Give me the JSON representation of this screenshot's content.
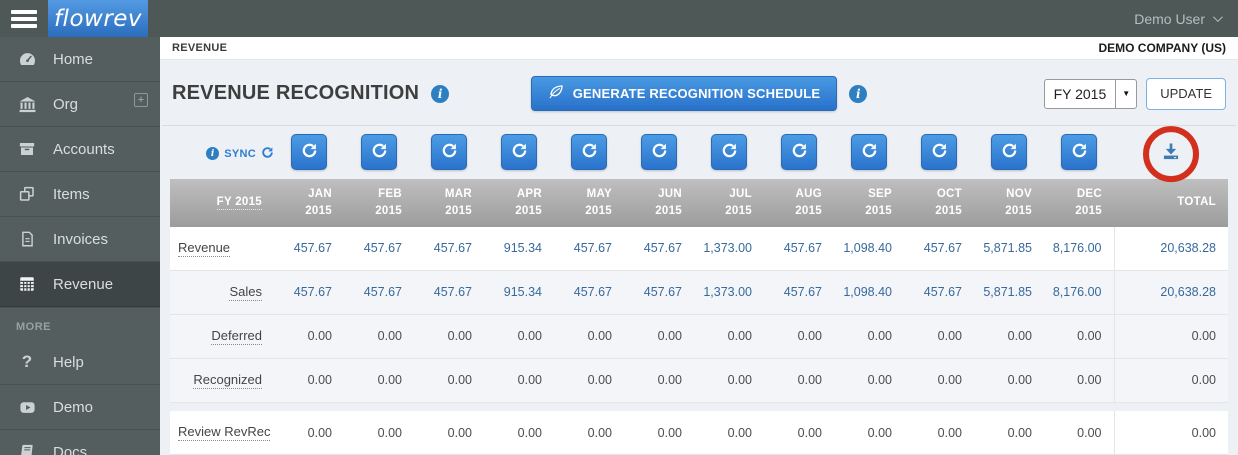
{
  "topbar": {
    "brand": "flowrev",
    "user": "Demo User"
  },
  "sidebar": {
    "items": [
      {
        "label": "Home",
        "icon": "gauge-icon",
        "active": false,
        "has_plus": false
      },
      {
        "label": "Org",
        "icon": "bank-icon",
        "active": false,
        "has_plus": true
      },
      {
        "label": "Accounts",
        "icon": "archive-icon",
        "active": false,
        "has_plus": false
      },
      {
        "label": "Items",
        "icon": "copy-icon",
        "active": false,
        "has_plus": false
      },
      {
        "label": "Invoices",
        "icon": "document-icon",
        "active": false,
        "has_plus": false
      },
      {
        "label": "Revenue",
        "icon": "calculator-icon",
        "active": true,
        "has_plus": false
      }
    ],
    "more_label": "MORE",
    "more_items": [
      {
        "label": "Help",
        "icon": "question-icon",
        "active": false,
        "has_plus": false
      },
      {
        "label": "Demo",
        "icon": "play-icon",
        "active": false,
        "has_plus": false
      },
      {
        "label": "Docs",
        "icon": "book-icon",
        "active": false,
        "has_plus": false
      }
    ]
  },
  "page": {
    "breadcrumb": "REVENUE",
    "company": "DEMO COMPANY (US)"
  },
  "toolbar": {
    "title": "REVENUE RECOGNITION",
    "generate_label": "GENERATE RECOGNITION SCHEDULE",
    "year_selected": "FY 2015",
    "update_label": "UPDATE"
  },
  "sync": {
    "label": "SYNC"
  },
  "colors": {
    "accent_blue": "#2d7ed3",
    "value_blue": "#38699c",
    "annotation_red": "#d32f1e",
    "sidebar_gray": "#545e5f"
  },
  "table": {
    "fiscal_year_header": "FY 2015",
    "year": "2015",
    "months": [
      "JAN",
      "FEB",
      "MAR",
      "APR",
      "MAY",
      "JUN",
      "JUL",
      "AUG",
      "SEP",
      "OCT",
      "NOV",
      "DEC"
    ],
    "total_header": "TOTAL",
    "rows": [
      {
        "label": "Revenue",
        "indent": false,
        "blue": true,
        "shade": false,
        "gap_before": false,
        "values": [
          "457.67",
          "457.67",
          "457.67",
          "915.34",
          "457.67",
          "457.67",
          "1,373.00",
          "457.67",
          "1,098.40",
          "457.67",
          "5,871.85",
          "8,176.00"
        ],
        "total": "20,638.28"
      },
      {
        "label": "Sales",
        "indent": true,
        "blue": true,
        "shade": true,
        "gap_before": false,
        "values": [
          "457.67",
          "457.67",
          "457.67",
          "915.34",
          "457.67",
          "457.67",
          "1,373.00",
          "457.67",
          "1,098.40",
          "457.67",
          "5,871.85",
          "8,176.00"
        ],
        "total": "20,638.28"
      },
      {
        "label": "Deferred",
        "indent": true,
        "blue": false,
        "shade": true,
        "gap_before": false,
        "values": [
          "0.00",
          "0.00",
          "0.00",
          "0.00",
          "0.00",
          "0.00",
          "0.00",
          "0.00",
          "0.00",
          "0.00",
          "0.00",
          "0.00"
        ],
        "total": "0.00"
      },
      {
        "label": "Recognized",
        "indent": true,
        "blue": false,
        "shade": true,
        "gap_before": false,
        "values": [
          "0.00",
          "0.00",
          "0.00",
          "0.00",
          "0.00",
          "0.00",
          "0.00",
          "0.00",
          "0.00",
          "0.00",
          "0.00",
          "0.00"
        ],
        "total": "0.00"
      },
      {
        "label": "Review RevRec",
        "indent": false,
        "blue": false,
        "shade": false,
        "gap_before": true,
        "values": [
          "0.00",
          "0.00",
          "0.00",
          "0.00",
          "0.00",
          "0.00",
          "0.00",
          "0.00",
          "0.00",
          "0.00",
          "0.00",
          "0.00"
        ],
        "total": "0.00"
      }
    ]
  }
}
